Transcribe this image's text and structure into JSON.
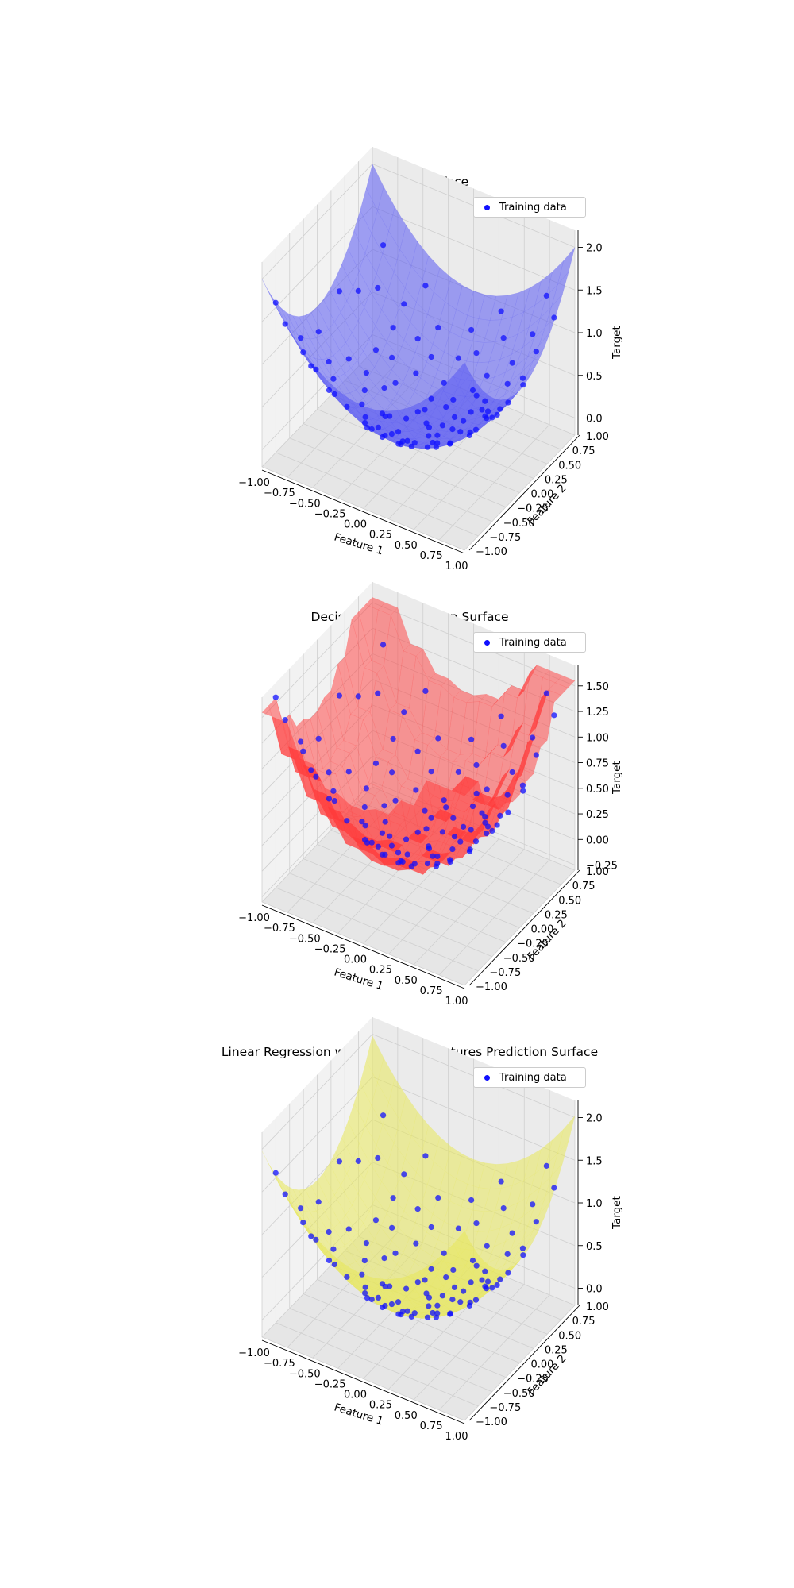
{
  "colors": {
    "training": "#1010ff",
    "true_surface": "#5858f2",
    "tree_surface": "#ff3a3a",
    "linreg_surface": "#e8e85a",
    "pane": "#f2f2f2",
    "grid": "#cfcfcf",
    "tick": "#000000"
  },
  "chart_data": [
    {
      "type": "scatter",
      "title": "True Model Surface",
      "xlabel": "Feature 1",
      "ylabel": "Feature 2",
      "zlabel": "Target",
      "xlim": [
        -1,
        1
      ],
      "ylim": [
        -1,
        1
      ],
      "zlim": [
        -0.2,
        2.2
      ],
      "xticks": [
        "−1.00",
        "−0.75",
        "−0.50",
        "−0.25",
        "0.00",
        "0.25",
        "0.50",
        "0.75",
        "1.00"
      ],
      "yticks": [
        "−1.00",
        "−0.75",
        "−0.50",
        "−0.25",
        "0.00",
        "0.25",
        "0.50",
        "0.75",
        "1.00"
      ],
      "zticks": [
        "0.0",
        "0.5",
        "1.0",
        "1.5",
        "2.0"
      ],
      "zticks_values": [
        0,
        0.5,
        1,
        1.5,
        2
      ],
      "surface": "x^2 + y^2",
      "legend": {
        "label": "Training data",
        "position": "upper right"
      },
      "series": [
        {
          "name": "Training data"
        }
      ]
    },
    {
      "type": "scatter",
      "title": "Decision Tree Prediction Surface",
      "xlabel": "Feature 1",
      "ylabel": "Feature 2",
      "zlabel": "Target",
      "xlim": [
        -1,
        1
      ],
      "ylim": [
        -1,
        1
      ],
      "zlim": [
        -0.3,
        1.7
      ],
      "xticks": [
        "−1.00",
        "−0.75",
        "−0.50",
        "−0.25",
        "0.00",
        "0.25",
        "0.50",
        "0.75",
        "1.00"
      ],
      "yticks": [
        "−1.00",
        "−0.75",
        "−0.50",
        "−0.25",
        "0.00",
        "0.25",
        "0.50",
        "0.75",
        "1.00"
      ],
      "zticks": [
        "−0.25",
        "0.00",
        "0.25",
        "0.50",
        "0.75",
        "1.00",
        "1.25",
        "1.50"
      ],
      "zticks_values": [
        -0.25,
        0,
        0.25,
        0.5,
        0.75,
        1,
        1.25,
        1.5
      ],
      "surface": "step approximation of x^2 + y^2",
      "legend": {
        "label": "Training data",
        "position": "upper right"
      },
      "series": [
        {
          "name": "Training data"
        }
      ]
    },
    {
      "type": "scatter",
      "title": "Linear Regression with Quadratic Features Prediction Surface",
      "xlabel": "Feature 1",
      "ylabel": "Feature 2",
      "zlabel": "Target",
      "xlim": [
        -1,
        1
      ],
      "ylim": [
        -1,
        1
      ],
      "zlim": [
        -0.2,
        2.2
      ],
      "xticks": [
        "−1.00",
        "−0.75",
        "−0.50",
        "−0.25",
        "0.00",
        "0.25",
        "0.50",
        "0.75",
        "1.00"
      ],
      "yticks": [
        "−1.00",
        "−0.75",
        "−0.50",
        "−0.25",
        "0.00",
        "0.25",
        "0.50",
        "0.75",
        "1.00"
      ],
      "zticks": [
        "0.0",
        "0.5",
        "1.0",
        "1.5",
        "2.0"
      ],
      "zticks_values": [
        0,
        0.5,
        1,
        1.5,
        2
      ],
      "surface": "fitted quadratic",
      "legend": {
        "label": "Training data",
        "position": "upper right"
      },
      "series": [
        {
          "name": "Training data"
        }
      ]
    }
  ],
  "training_points": [
    [
      -0.82,
      -0.91
    ],
    [
      -0.74,
      0.62
    ],
    [
      -0.66,
      -0.33
    ],
    [
      -0.58,
      0.12
    ],
    [
      -0.49,
      -0.72
    ],
    [
      -0.41,
      0.88
    ],
    [
      -0.33,
      -0.05
    ],
    [
      -0.27,
      0.45
    ],
    [
      -0.19,
      -0.58
    ],
    [
      -0.12,
      0.21
    ],
    [
      -0.05,
      -0.87
    ],
    [
      0.03,
      0.67
    ],
    [
      0.09,
      -0.29
    ],
    [
      0.16,
      0.05
    ],
    [
      0.24,
      -0.64
    ],
    [
      0.31,
      0.93
    ],
    [
      0.38,
      -0.12
    ],
    [
      0.45,
      0.38
    ],
    [
      0.52,
      -0.81
    ],
    [
      0.59,
      0.15
    ],
    [
      0.67,
      -0.47
    ],
    [
      0.74,
      0.71
    ],
    [
      0.81,
      -0.06
    ],
    [
      0.88,
      0.52
    ],
    [
      0.95,
      -0.69
    ],
    [
      -0.95,
      0.31
    ],
    [
      -0.88,
      -0.52
    ],
    [
      -0.71,
      0.04
    ],
    [
      -0.63,
      -0.79
    ],
    [
      -0.55,
      0.55
    ],
    [
      -0.46,
      -0.18
    ],
    [
      -0.38,
      0.28
    ],
    [
      -0.3,
      -0.42
    ],
    [
      -0.22,
      0.76
    ],
    [
      -0.14,
      -0.11
    ],
    [
      -0.07,
      0.36
    ],
    [
      0.01,
      -0.38
    ],
    [
      0.07,
      0.83
    ],
    [
      0.14,
      -0.74
    ],
    [
      0.21,
      0.27
    ],
    [
      0.29,
      -0.21
    ],
    [
      0.36,
      0.58
    ],
    [
      0.43,
      -0.53
    ],
    [
      0.5,
      0.02
    ],
    [
      0.57,
      -0.93
    ],
    [
      0.64,
      0.44
    ],
    [
      0.71,
      -0.26
    ],
    [
      0.78,
      0.89
    ],
    [
      0.86,
      -0.37
    ],
    [
      0.93,
      0.19
    ],
    [
      -0.91,
      -0.14
    ],
    [
      -0.79,
      0.81
    ],
    [
      -0.68,
      -0.61
    ],
    [
      -0.6,
      0.33
    ],
    [
      -0.52,
      -0.02
    ],
    [
      -0.44,
      -0.49
    ],
    [
      -0.35,
      0.63
    ],
    [
      -0.25,
      -0.27
    ],
    [
      -0.17,
      0.09
    ],
    [
      -0.09,
      -0.68
    ],
    [
      -0.02,
      0.5
    ],
    [
      0.05,
      -0.16
    ],
    [
      0.12,
      0.41
    ],
    [
      0.19,
      -0.95
    ],
    [
      0.26,
      0.14
    ],
    [
      0.33,
      -0.44
    ],
    [
      0.41,
      0.79
    ],
    [
      0.48,
      -0.31
    ],
    [
      0.55,
      0.25
    ],
    [
      0.62,
      -0.7
    ],
    [
      0.69,
      0.07
    ],
    [
      0.76,
      -0.58
    ],
    [
      0.84,
      0.35
    ],
    [
      0.91,
      -0.19
    ],
    [
      0.98,
      0.66
    ],
    [
      -0.99,
      -0.77
    ],
    [
      -0.85,
      0.47
    ],
    [
      -0.76,
      -0.23
    ],
    [
      -0.61,
      -0.97
    ],
    [
      -0.53,
      0.71
    ],
    [
      -0.43,
      0.17
    ],
    [
      -0.36,
      -0.86
    ],
    [
      -0.28,
      -0.01
    ],
    [
      -0.2,
      0.6
    ],
    [
      -0.1,
      -0.47
    ],
    [
      -0.03,
      -0.23
    ],
    [
      0.04,
      0.12
    ],
    [
      0.11,
      -0.52
    ],
    [
      0.18,
      0.72
    ],
    [
      0.23,
      -0.08
    ],
    [
      0.35,
      0.31
    ],
    [
      0.46,
      -0.66
    ],
    [
      0.6,
      0.6
    ],
    [
      0.73,
      -0.84
    ],
    [
      0.82,
      0.12
    ],
    [
      0.9,
      -0.5
    ],
    [
      -0.15,
      -0.33
    ],
    [
      0.27,
      0.49
    ],
    [
      -0.48,
      0.4
    ],
    [
      0.56,
      -0.1
    ]
  ]
}
